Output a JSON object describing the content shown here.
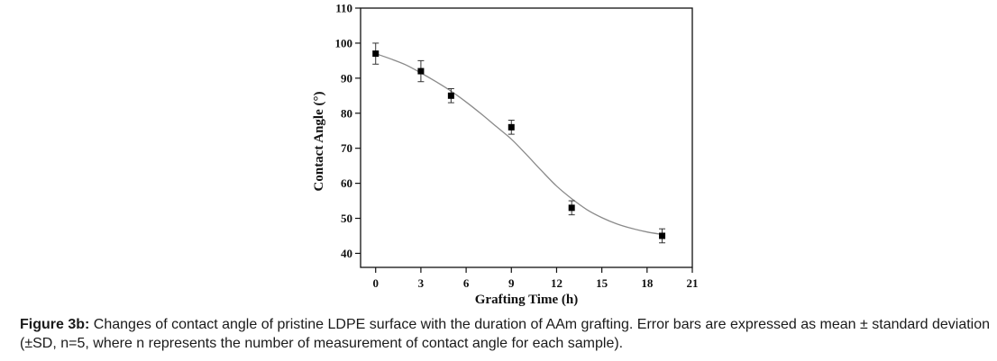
{
  "chart_data": {
    "type": "scatter",
    "title": "",
    "xlabel": "Grafting Time (h)",
    "ylabel": "Contact Angle (°)",
    "xlim": [
      -1,
      21
    ],
    "ylim": [
      36,
      110
    ],
    "xticks": [
      0,
      3,
      6,
      9,
      12,
      15,
      18,
      21
    ],
    "yticks": [
      40,
      50,
      60,
      70,
      80,
      90,
      100,
      110
    ],
    "series": [
      {
        "name": "Contact angle",
        "x": [
          0,
          3,
          5,
          9,
          13,
          19
        ],
        "y": [
          97,
          92,
          85,
          76,
          53,
          45
        ],
        "error": [
          3,
          3,
          2,
          2,
          2,
          2
        ]
      }
    ],
    "fit_curve": {
      "type": "sigmoidal fit",
      "x": [
        0,
        1,
        2,
        3,
        4,
        5,
        6,
        7,
        8,
        9,
        10,
        11,
        12,
        13,
        14,
        15,
        16,
        17,
        18,
        19
      ],
      "y": [
        97,
        95.5,
        93.8,
        91.5,
        89,
        86.3,
        83.2,
        79.8,
        76.2,
        72.6,
        68.2,
        63.6,
        59.2,
        55.6,
        52.5,
        50.2,
        48.4,
        47.1,
        46.1,
        45.4
      ]
    }
  },
  "caption": {
    "label": "Figure 3b:",
    "text": "Changes of contact angle of pristine LDPE surface with the duration of AAm grafting. Error bars are expressed as mean ± standard deviation (±SD, n=5, where n represents the number of measurement of contact angle for each sample)."
  }
}
